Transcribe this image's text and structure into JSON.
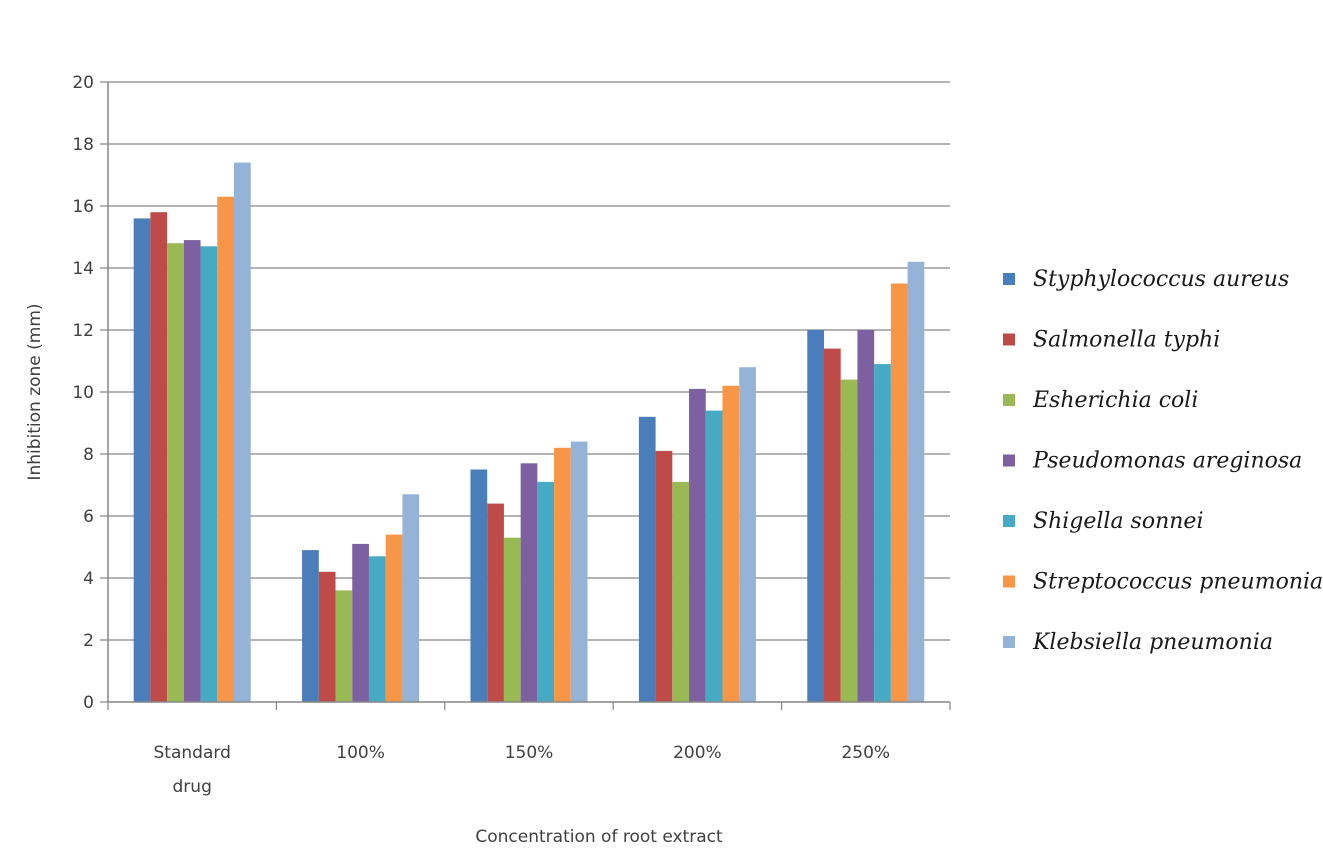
{
  "chart_data": {
    "type": "bar",
    "categories": [
      "Standard drug",
      "100%",
      "150%",
      "200%",
      "250%"
    ],
    "category_lines": [
      [
        "Standard",
        "drug"
      ],
      [
        "100%"
      ],
      [
        "150%"
      ],
      [
        "200%"
      ],
      [
        "250%"
      ]
    ],
    "series": [
      {
        "name": "Styphylococcus aureus",
        "color": "#4a7ebb",
        "values": [
          15.6,
          4.9,
          7.5,
          9.2,
          12.0
        ]
      },
      {
        "name": "Salmonella typhi",
        "color": "#be4b48",
        "values": [
          15.8,
          4.2,
          6.4,
          8.1,
          11.4
        ]
      },
      {
        "name": "Esherichia coli",
        "color": "#98b954",
        "values": [
          14.8,
          3.6,
          5.3,
          7.1,
          10.4
        ]
      },
      {
        "name": "Pseudomonas areginosa",
        "color": "#7d60a0",
        "values": [
          14.9,
          5.1,
          7.7,
          10.1,
          12.0
        ]
      },
      {
        "name": "Shigella sonnei",
        "color": "#46aac5",
        "values": [
          14.7,
          4.7,
          7.1,
          9.4,
          10.9
        ]
      },
      {
        "name": "Streptococcus pneumonia",
        "color": "#f79646",
        "values": [
          16.3,
          5.4,
          8.2,
          10.2,
          13.5
        ]
      },
      {
        "name": "Klebsiella pneumonia",
        "color": "#95b3d7",
        "values": [
          17.4,
          6.7,
          8.4,
          10.8,
          14.2
        ]
      }
    ],
    "title": "",
    "xlabel": "Concentration of root extract",
    "ylabel": "Inhibition zone (mm)",
    "ylim": [
      0,
      20
    ],
    "yticks": [
      0,
      2,
      4,
      6,
      8,
      10,
      12,
      14,
      16,
      18,
      20
    ],
    "grid": true,
    "legend_position": "right"
  }
}
